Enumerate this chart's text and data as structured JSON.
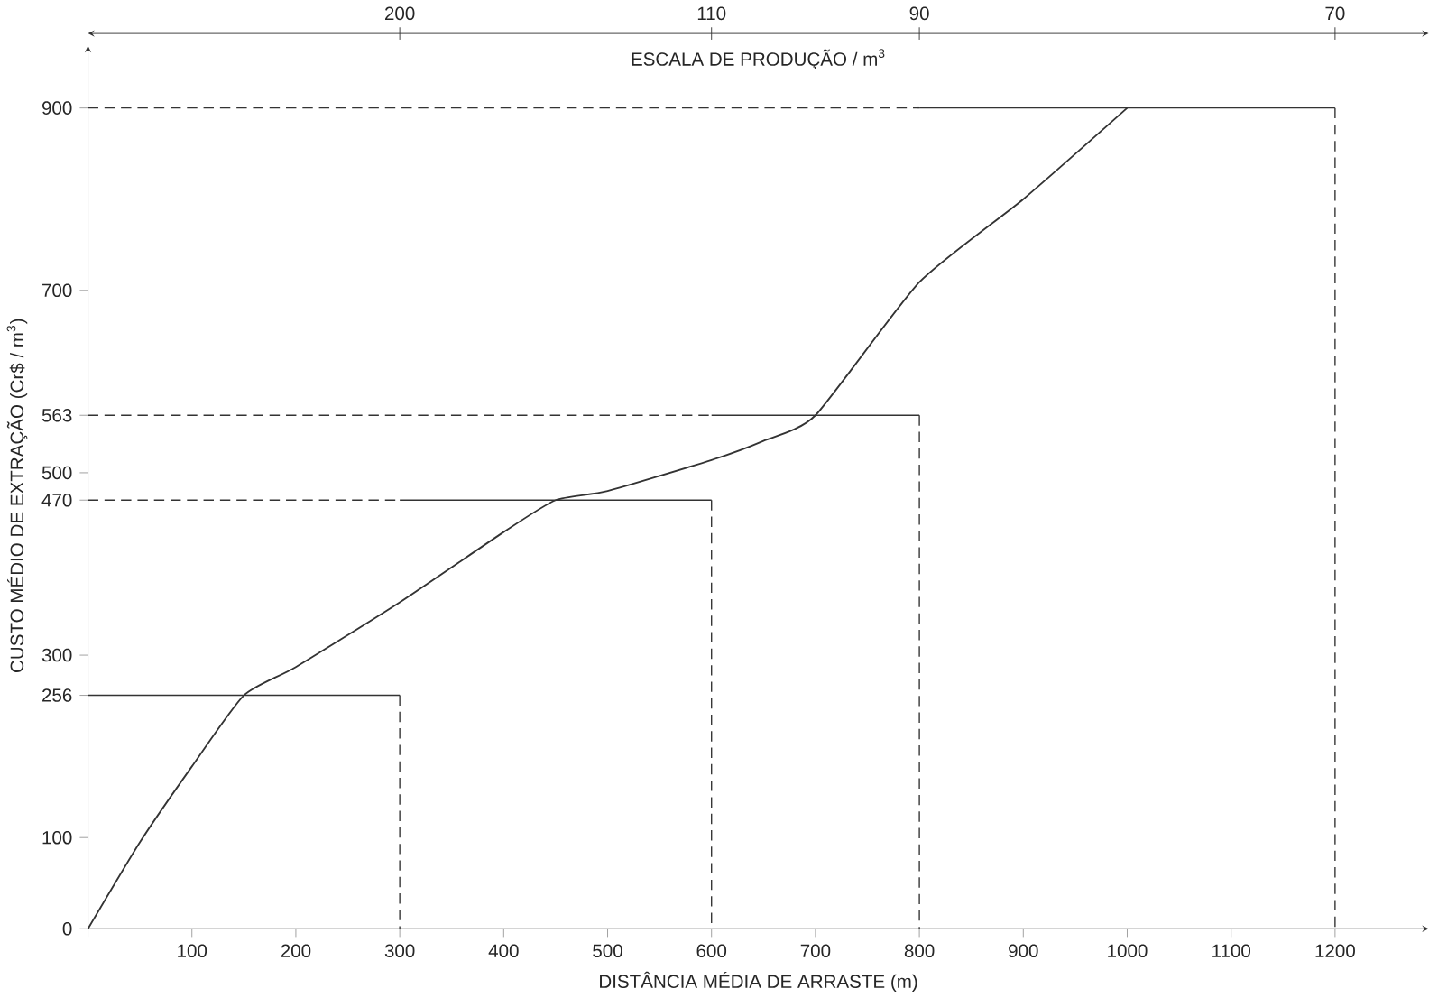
{
  "chart_data": {
    "type": "line",
    "xlabel": "DISTÂNCIA MÉDIA DE ARRASTE (m)",
    "ylabel": "CUSTO MÉDIO DE EXTRAÇÃO (Cr$ / m$^{3}$)",
    "x2label": "ESCALA DE PRODUÇÃO / m$^{3}$",
    "xlim": [
      0,
      1290
    ],
    "ylim": [
      0,
      950
    ],
    "xticks": [
      {
        "value": 0,
        "label": null
      },
      100,
      200,
      300,
      400,
      500,
      600,
      700,
      800,
      900,
      1000,
      1100,
      1200
    ],
    "yticks": [
      0,
      100,
      256,
      300,
      470,
      500,
      563,
      700,
      900
    ],
    "annotations": [
      "200",
      "110",
      "90",
      "70"
    ],
    "grid": false,
    "marker": "none",
    "series": [
      {
        "color": "#333333",
        "line_style": "solid",
        "x": [
          0,
          50,
          100,
          150,
          200,
          300,
          400,
          450,
          500,
          600,
          650,
          700,
          800,
          900,
          1000
        ],
        "values": [
          0,
          95,
          178,
          256,
          287,
          358,
          435,
          470,
          480,
          514,
          535,
          563,
          709,
          800,
          900
        ]
      },
      {
        "color": "#333333",
        "line_style": "solid",
        "x": [
          0,
          300
        ],
        "values": [
          256,
          256
        ]
      },
      {
        "color": "#333333",
        "line_style": "solid",
        "x": [
          300,
          600
        ],
        "values": [
          470,
          470
        ]
      },
      {
        "color": "#333333",
        "line_style": "solid",
        "x": [
          600,
          800
        ],
        "values": [
          563,
          563
        ]
      },
      {
        "color": "#333333",
        "line_style": "solid",
        "x": [
          800,
          1200
        ],
        "values": [
          900,
          900
        ]
      },
      {
        "color": "#333333",
        "line_style": "dashed",
        "x": [
          300,
          300
        ],
        "values": [
          256,
          0
        ]
      },
      {
        "color": "#333333",
        "line_style": "dashed",
        "x": [
          0,
          300
        ],
        "values": [
          470,
          470
        ]
      },
      {
        "color": "#333333",
        "line_style": "dashed",
        "x": [
          600,
          600
        ],
        "values": [
          470,
          0
        ]
      },
      {
        "color": "#333333",
        "line_style": "dashed",
        "x": [
          0,
          600
        ],
        "values": [
          563,
          563
        ]
      },
      {
        "color": "#333333",
        "line_style": "dashed",
        "x": [
          800,
          800
        ],
        "values": [
          563,
          0
        ]
      },
      {
        "color": "#333333",
        "line_style": "dashed",
        "x": [
          0,
          800
        ],
        "values": [
          900,
          900
        ]
      },
      {
        "color": "#333333",
        "line_style": "dashed",
        "x": [
          1200,
          1200
        ],
        "values": [
          900,
          0
        ]
      }
    ]
  }
}
